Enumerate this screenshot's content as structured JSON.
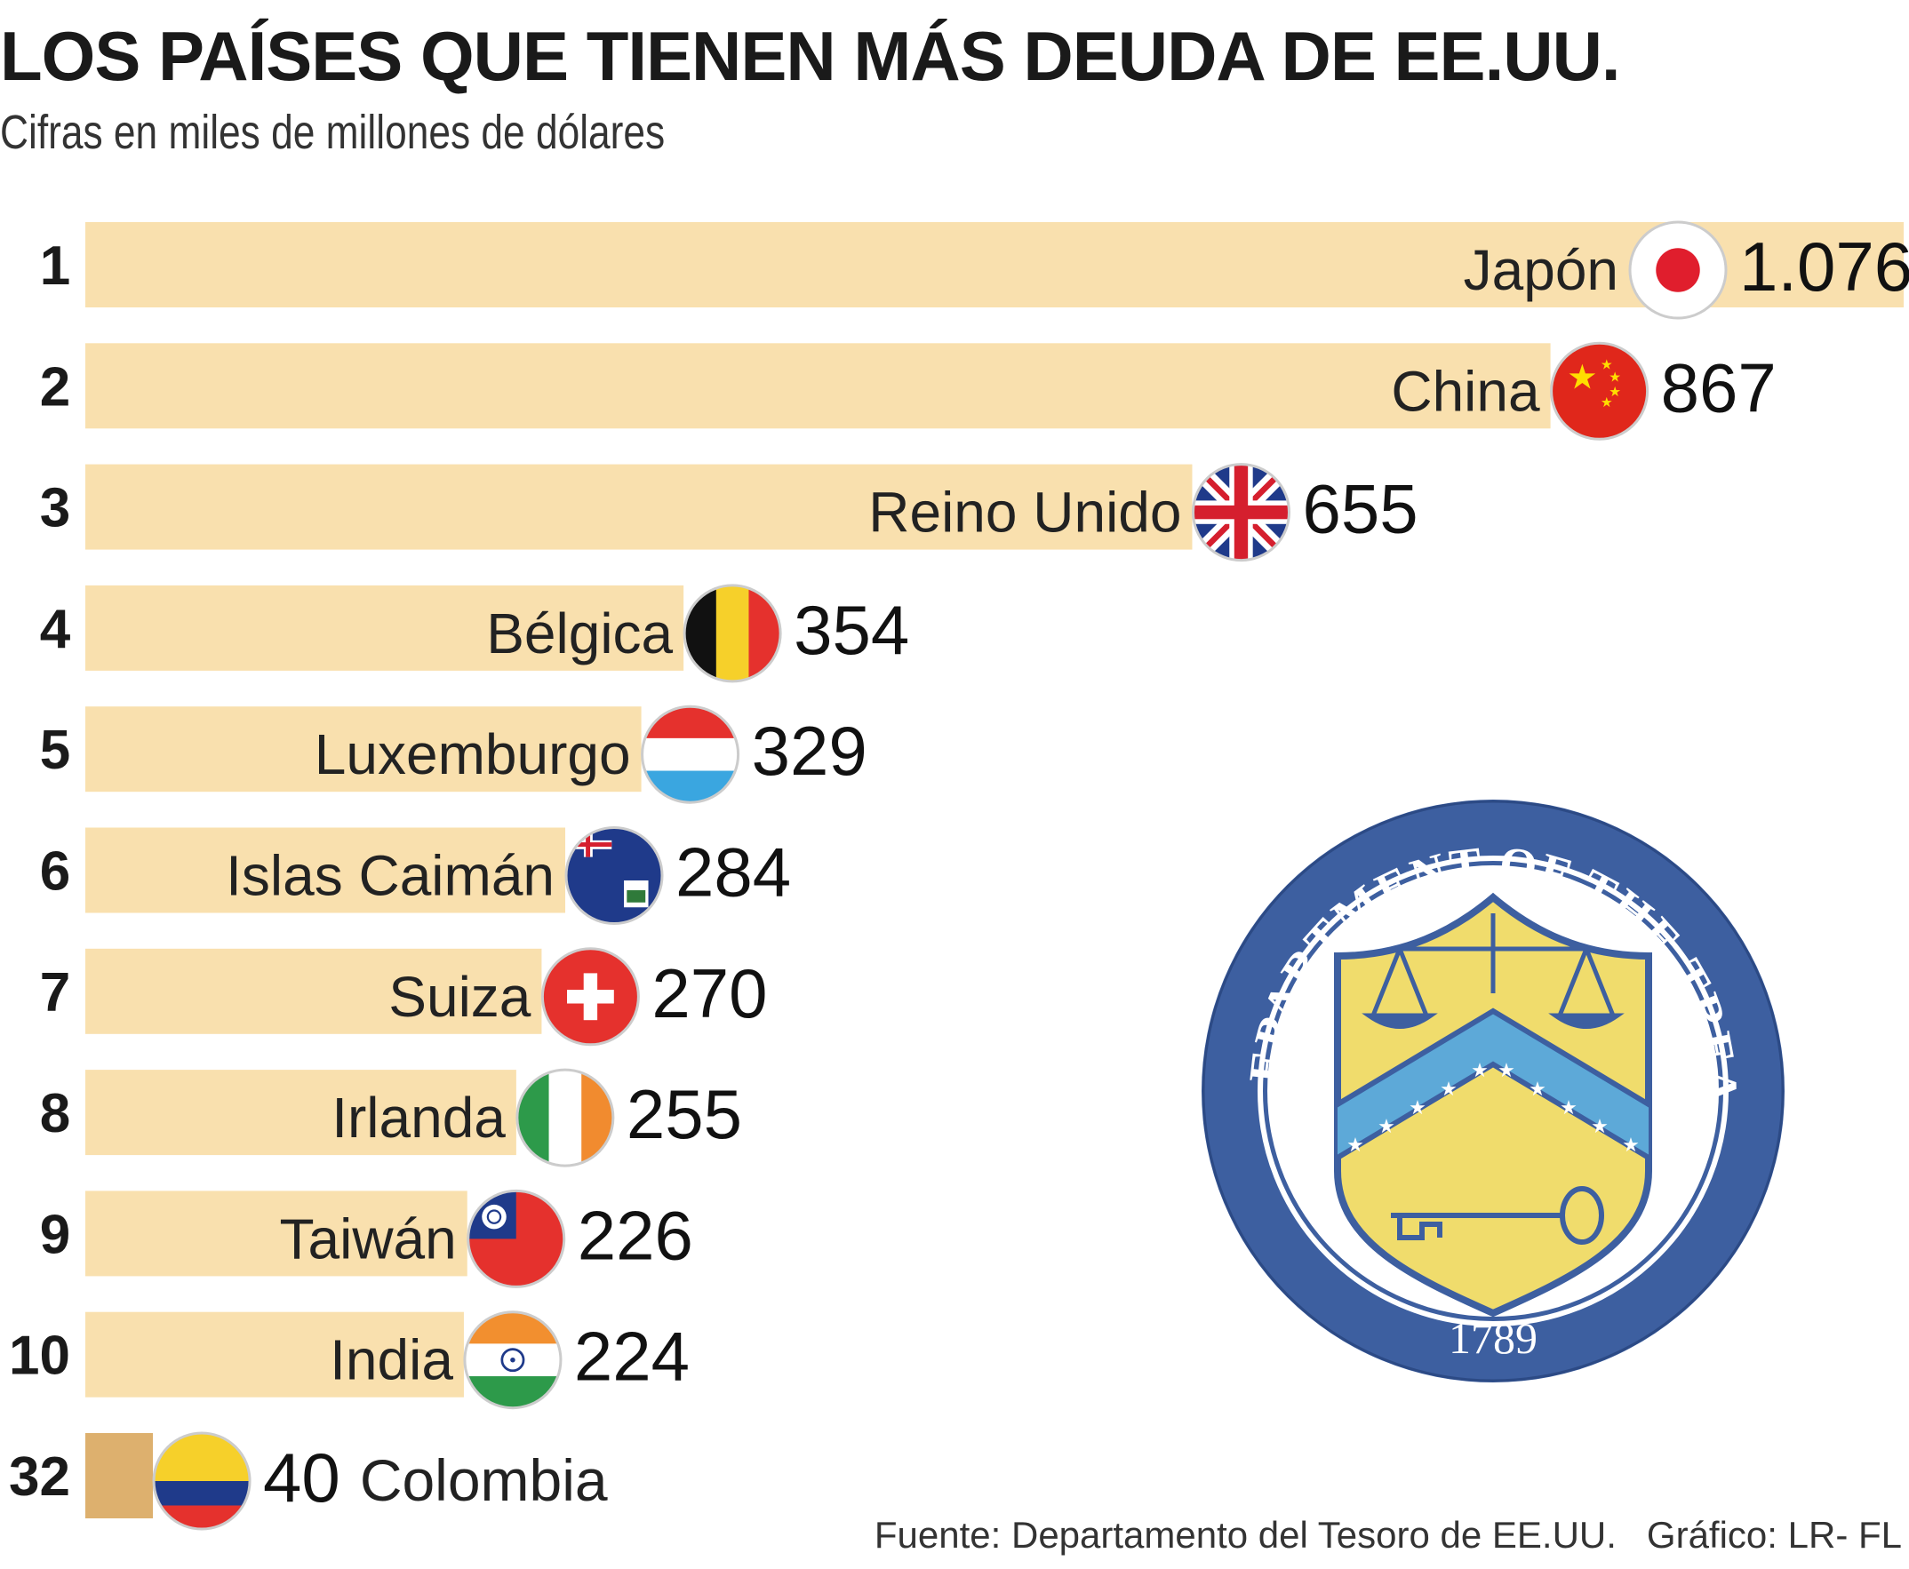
{
  "title": "LOS PAÍSES QUE TIENEN MÁS DEUDA DE EE.UU.",
  "subtitle": "Cifras en miles de millones de dólares",
  "footer": {
    "source": "Fuente: Departamento del Tesoro de EE.UU.",
    "credit": "Gráfico: LR- FL"
  },
  "seal": {
    "label": "Department of the Treasury seal",
    "text": "THE DEPARTMENT OF THE TREASURY",
    "year": "1789"
  },
  "colors": {
    "bar": "#f9e0ae",
    "bar_highlight": "#ddb06e",
    "text": "#1a1a1a",
    "seal_blue": "#3d5fa0",
    "seal_yellow": "#f0dc6c"
  },
  "chart_data": {
    "type": "bar",
    "orientation": "horizontal",
    "title": "LOS PAÍSES QUE TIENEN MÁS DEUDA DE EE.UU.",
    "subtitle": "Cifras en miles de millones de dólares",
    "xlim": [
      0,
      1076
    ],
    "grid": false,
    "legend": "none",
    "bars": [
      {
        "rank": "1",
        "country": "Japón",
        "value": 1076,
        "label": "1.076",
        "flag": "japan-flag-icon"
      },
      {
        "rank": "2",
        "country": "China",
        "value": 867,
        "label": "867",
        "flag": "china-flag-icon"
      },
      {
        "rank": "3",
        "country": "Reino Unido",
        "value": 655,
        "label": "655",
        "flag": "uk-flag-icon"
      },
      {
        "rank": "4",
        "country": "Bélgica",
        "value": 354,
        "label": "354",
        "flag": "belgium-flag-icon"
      },
      {
        "rank": "5",
        "country": "Luxemburgo",
        "value": 329,
        "label": "329",
        "flag": "luxembourg-flag-icon"
      },
      {
        "rank": "6",
        "country": "Islas Caimán",
        "value": 284,
        "label": "284",
        "flag": "cayman-flag-icon"
      },
      {
        "rank": "7",
        "country": "Suiza",
        "value": 270,
        "label": "270",
        "flag": "switzerland-flag-icon"
      },
      {
        "rank": "8",
        "country": "Irlanda",
        "value": 255,
        "label": "255",
        "flag": "ireland-flag-icon"
      },
      {
        "rank": "9",
        "country": "Taiwán",
        "value": 226,
        "label": "226",
        "flag": "taiwan-flag-icon"
      },
      {
        "rank": "10",
        "country": "India",
        "value": 224,
        "label": "224",
        "flag": "india-flag-icon"
      },
      {
        "rank": "32",
        "country": "Colombia",
        "value": 40,
        "label": "40",
        "flag": "colombia-flag-icon",
        "highlight": true
      }
    ]
  }
}
